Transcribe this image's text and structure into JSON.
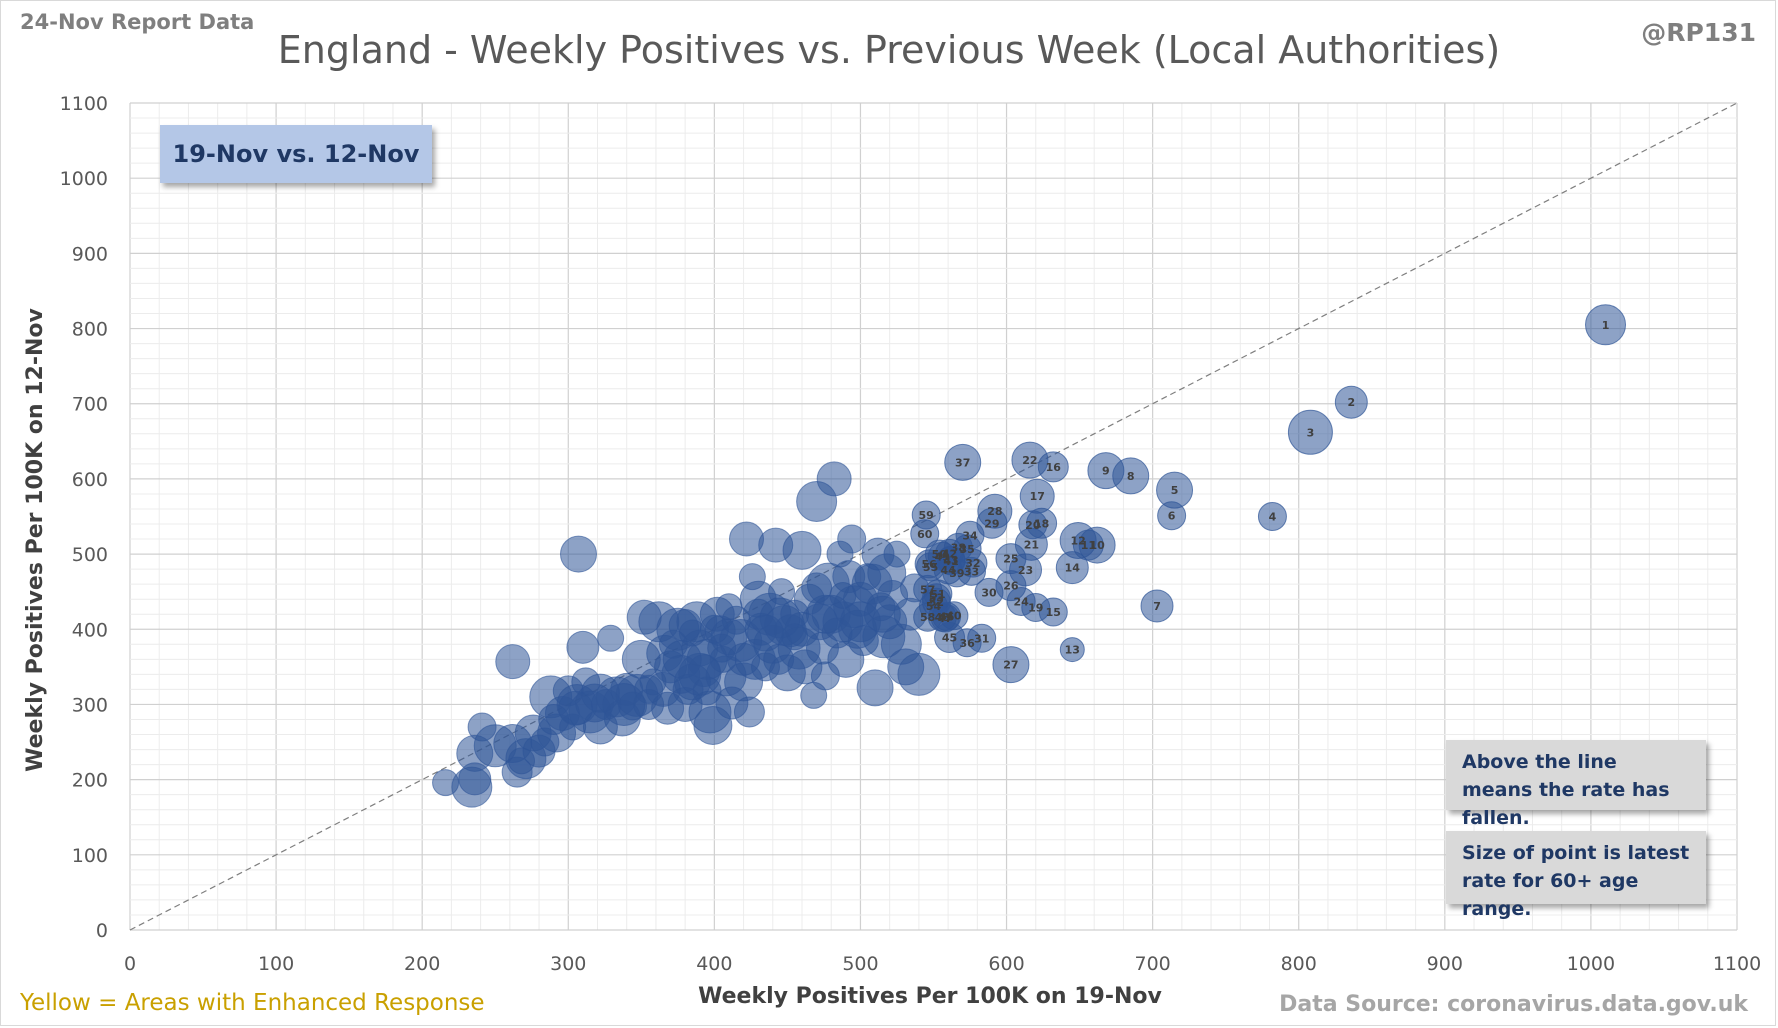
{
  "header": {
    "report_date": "24-Nov Report Data",
    "handle": "@RP131",
    "title": "England - Weekly Positives vs. Previous Week (Local Authorities)"
  },
  "legend": {
    "period": "19-Nov vs. 12-Nov",
    "note_line": "Above the line means the rate has fallen.",
    "note_size": "Size of point is latest rate for 60+ age range."
  },
  "footer": {
    "left": "Yellow = Areas with Enhanced  Response",
    "right": "Data Source: coronavirus.data.gov.uk"
  },
  "colors": {
    "bubble": "#2f5597",
    "bubble_label": "#404040",
    "footnote_yellow": "#c9a000"
  },
  "chart_data": {
    "type": "scatter",
    "xlabel": "Weekly Positives Per 100K on 19-Nov",
    "ylabel": "Weekly Positives Per 100K on 12-Nov",
    "xlim": [
      0,
      1100
    ],
    "ylim": [
      0,
      1100
    ],
    "x_ticks": [
      0,
      100,
      200,
      300,
      400,
      500,
      600,
      700,
      800,
      900,
      1000,
      1100
    ],
    "y_ticks": [
      0,
      100,
      200,
      300,
      400,
      500,
      600,
      700,
      800,
      900,
      1000,
      1100
    ],
    "grid": true,
    "reference_line": "y = x",
    "labeled_points": [
      {
        "label": "1",
        "x": 1010,
        "y": 805,
        "size": 20
      },
      {
        "label": "2",
        "x": 836,
        "y": 702,
        "size": 16
      },
      {
        "label": "3",
        "x": 808,
        "y": 662,
        "size": 22
      },
      {
        "label": "4",
        "x": 782,
        "y": 550,
        "size": 14
      },
      {
        "label": "5",
        "x": 715,
        "y": 585,
        "size": 18
      },
      {
        "label": "6",
        "x": 713,
        "y": 551,
        "size": 14
      },
      {
        "label": "7",
        "x": 703,
        "y": 431,
        "size": 16
      },
      {
        "label": "8",
        "x": 685,
        "y": 604,
        "size": 18
      },
      {
        "label": "9",
        "x": 668,
        "y": 611,
        "size": 18
      },
      {
        "label": "10",
        "x": 662,
        "y": 512,
        "size": 18
      },
      {
        "label": "11",
        "x": 656,
        "y": 512,
        "size": 15
      },
      {
        "label": "12",
        "x": 649,
        "y": 518,
        "size": 18
      },
      {
        "label": "13",
        "x": 645,
        "y": 373,
        "size": 12
      },
      {
        "label": "14",
        "x": 645,
        "y": 482,
        "size": 16
      },
      {
        "label": "15",
        "x": 632,
        "y": 423,
        "size": 14
      },
      {
        "label": "16",
        "x": 632,
        "y": 616,
        "size": 15
      },
      {
        "label": "17",
        "x": 621,
        "y": 577,
        "size": 17
      },
      {
        "label": "18",
        "x": 624,
        "y": 541,
        "size": 15
      },
      {
        "label": "19",
        "x": 620,
        "y": 429,
        "size": 14
      },
      {
        "label": "20",
        "x": 618,
        "y": 539,
        "size": 14
      },
      {
        "label": "21",
        "x": 617,
        "y": 513,
        "size": 16
      },
      {
        "label": "22",
        "x": 616,
        "y": 625,
        "size": 18
      },
      {
        "label": "23",
        "x": 613,
        "y": 479,
        "size": 16
      },
      {
        "label": "24",
        "x": 610,
        "y": 437,
        "size": 14
      },
      {
        "label": "25",
        "x": 603,
        "y": 494,
        "size": 15
      },
      {
        "label": "26",
        "x": 603,
        "y": 458,
        "size": 15
      },
      {
        "label": "27",
        "x": 603,
        "y": 353,
        "size": 18
      },
      {
        "label": "28",
        "x": 592,
        "y": 557,
        "size": 17
      },
      {
        "label": "29",
        "x": 590,
        "y": 541,
        "size": 15
      },
      {
        "label": "30",
        "x": 588,
        "y": 449,
        "size": 14
      },
      {
        "label": "31",
        "x": 583,
        "y": 388,
        "size": 14
      },
      {
        "label": "32",
        "x": 577,
        "y": 488,
        "size": 14
      },
      {
        "label": "33",
        "x": 576,
        "y": 477,
        "size": 14
      },
      {
        "label": "34",
        "x": 575,
        "y": 525,
        "size": 14
      },
      {
        "label": "35",
        "x": 573,
        "y": 507,
        "size": 14
      },
      {
        "label": "36",
        "x": 573,
        "y": 382,
        "size": 14
      },
      {
        "label": "37",
        "x": 570,
        "y": 622,
        "size": 18
      },
      {
        "label": "38",
        "x": 567,
        "y": 509,
        "size": 14
      },
      {
        "label": "39",
        "x": 566,
        "y": 475,
        "size": 14
      },
      {
        "label": "40",
        "x": 564,
        "y": 418,
        "size": 14
      },
      {
        "label": "41",
        "x": 562,
        "y": 491,
        "size": 14
      },
      {
        "label": "42",
        "x": 561,
        "y": 501,
        "size": 14
      },
      {
        "label": "43",
        "x": 562,
        "y": 492,
        "size": 14
      },
      {
        "label": "44",
        "x": 560,
        "y": 479,
        "size": 14
      },
      {
        "label": "45",
        "x": 561,
        "y": 389,
        "size": 15
      },
      {
        "label": "46",
        "x": 559,
        "y": 417,
        "size": 14
      },
      {
        "label": "47",
        "x": 558,
        "y": 415,
        "size": 14
      },
      {
        "label": "48",
        "x": 556,
        "y": 416,
        "size": 14
      },
      {
        "label": "49",
        "x": 556,
        "y": 497,
        "size": 14
      },
      {
        "label": "50",
        "x": 554,
        "y": 500,
        "size": 14
      },
      {
        "label": "51",
        "x": 553,
        "y": 447,
        "size": 14
      },
      {
        "label": "52",
        "x": 552,
        "y": 436,
        "size": 14
      },
      {
        "label": "53",
        "x": 552,
        "y": 442,
        "size": 14
      },
      {
        "label": "54",
        "x": 550,
        "y": 431,
        "size": 14
      },
      {
        "label": "55",
        "x": 548,
        "y": 483,
        "size": 14
      },
      {
        "label": "56",
        "x": 547,
        "y": 487,
        "size": 14
      },
      {
        "label": "57",
        "x": 546,
        "y": 453,
        "size": 14
      },
      {
        "label": "58",
        "x": 546,
        "y": 416,
        "size": 14
      },
      {
        "label": "59",
        "x": 545,
        "y": 552,
        "size": 14
      },
      {
        "label": "60",
        "x": 544,
        "y": 527,
        "size": 14
      }
    ],
    "points": [
      [
        216,
        196
      ],
      [
        234,
        190
      ],
      [
        236,
        235
      ],
      [
        236,
        201
      ],
      [
        241,
        270
      ],
      [
        250,
        245
      ],
      [
        262,
        248
      ],
      [
        262,
        357
      ],
      [
        265,
        210
      ],
      [
        268,
        225
      ],
      [
        271,
        228
      ],
      [
        276,
        262
      ],
      [
        280,
        238
      ],
      [
        284,
        250
      ],
      [
        288,
        310
      ],
      [
        292,
        262
      ],
      [
        296,
        288
      ],
      [
        300,
        318
      ],
      [
        303,
        270
      ],
      [
        306,
        300
      ],
      [
        307,
        500
      ],
      [
        310,
        376
      ],
      [
        312,
        330
      ],
      [
        315,
        290
      ],
      [
        318,
        302
      ],
      [
        322,
        270
      ],
      [
        326,
        300
      ],
      [
        329,
        388
      ],
      [
        333,
        310
      ],
      [
        337,
        282
      ],
      [
        340,
        320
      ],
      [
        344,
        298
      ],
      [
        347,
        312
      ],
      [
        350,
        360
      ],
      [
        352,
        416
      ],
      [
        355,
        300
      ],
      [
        358,
        330
      ],
      [
        362,
        410
      ],
      [
        366,
        368
      ],
      [
        368,
        295
      ],
      [
        372,
        380
      ],
      [
        375,
        400
      ],
      [
        377,
        340
      ],
      [
        380,
        300
      ],
      [
        382,
        320
      ],
      [
        385,
        395
      ],
      [
        388,
        410
      ],
      [
        390,
        375
      ],
      [
        393,
        345
      ],
      [
        395,
        318
      ],
      [
        397,
        290
      ],
      [
        399,
        272
      ],
      [
        402,
        420
      ],
      [
        404,
        398
      ],
      [
        406,
        360
      ],
      [
        408,
        338
      ],
      [
        410,
        390
      ],
      [
        412,
        302
      ],
      [
        415,
        412
      ],
      [
        418,
        385
      ],
      [
        420,
        330
      ],
      [
        422,
        520
      ],
      [
        424,
        290
      ],
      [
        426,
        470
      ],
      [
        428,
        360
      ],
      [
        430,
        440
      ],
      [
        432,
        400
      ],
      [
        435,
        350
      ],
      [
        438,
        420
      ],
      [
        440,
        380
      ],
      [
        442,
        512
      ],
      [
        444,
        360
      ],
      [
        446,
        450
      ],
      [
        448,
        405
      ],
      [
        450,
        342
      ],
      [
        452,
        398
      ],
      [
        455,
        420
      ],
      [
        458,
        375
      ],
      [
        460,
        505
      ],
      [
        462,
        350
      ],
      [
        465,
        440
      ],
      [
        468,
        312
      ],
      [
        470,
        570
      ],
      [
        472,
        410
      ],
      [
        474,
        375
      ],
      [
        476,
        338
      ],
      [
        478,
        460
      ],
      [
        480,
        420
      ],
      [
        482,
        600
      ],
      [
        484,
        395
      ],
      [
        486,
        500
      ],
      [
        488,
        410
      ],
      [
        490,
        360
      ],
      [
        492,
        470
      ],
      [
        494,
        520
      ],
      [
        496,
        430
      ],
      [
        498,
        400
      ],
      [
        500,
        440
      ],
      [
        502,
        385
      ],
      [
        505,
        470
      ],
      [
        508,
        460
      ],
      [
        510,
        322
      ],
      [
        512,
        500
      ],
      [
        514,
        430
      ],
      [
        516,
        390
      ],
      [
        518,
        475
      ],
      [
        520,
        410
      ],
      [
        522,
        445
      ],
      [
        525,
        500
      ],
      [
        528,
        380
      ],
      [
        531,
        350
      ],
      [
        534,
        420
      ],
      [
        537,
        455
      ],
      [
        540,
        340
      ],
      [
        476,
        420
      ],
      [
        460,
        400
      ],
      [
        430,
        420
      ],
      [
        410,
        430
      ],
      [
        395,
        360
      ],
      [
        385,
        330
      ],
      [
        370,
        350
      ],
      [
        355,
        320
      ],
      [
        338,
        300
      ],
      [
        322,
        315
      ],
      [
        305,
        295
      ],
      [
        290,
        280
      ],
      [
        455,
        390
      ],
      [
        445,
        415
      ],
      [
        435,
        395
      ],
      [
        420,
        360
      ],
      [
        405,
        375
      ],
      [
        390,
        340
      ],
      [
        378,
        360
      ],
      [
        365,
        320
      ],
      [
        470,
        455
      ],
      [
        488,
        445
      ],
      [
        500,
        410
      ],
      [
        515,
        420
      ],
      [
        380,
        405
      ],
      [
        400,
        400
      ]
    ]
  }
}
